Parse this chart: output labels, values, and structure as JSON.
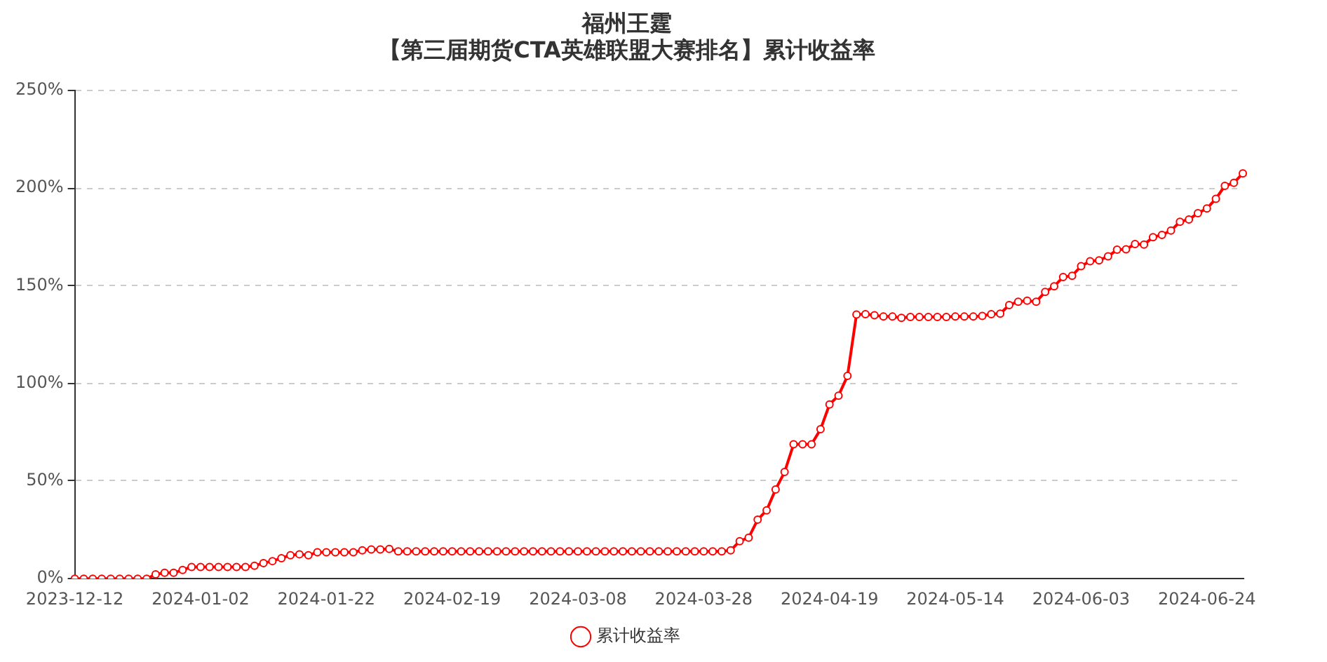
{
  "chart_data": {
    "type": "line",
    "title": "福州王霆",
    "subtitle": "【第三届期货CTA英雄联盟大赛排名】累计收益率",
    "categories": [
      "2023-12-12",
      null,
      null,
      null,
      null,
      null,
      null,
      null,
      null,
      null,
      null,
      null,
      null,
      null,
      "2024-01-02",
      null,
      null,
      null,
      null,
      null,
      null,
      null,
      null,
      null,
      null,
      null,
      null,
      null,
      "2024-01-22",
      null,
      null,
      null,
      null,
      null,
      null,
      null,
      null,
      null,
      null,
      null,
      null,
      null,
      "2024-02-19",
      null,
      null,
      null,
      null,
      null,
      null,
      null,
      null,
      null,
      null,
      null,
      null,
      null,
      "2024-03-08",
      null,
      null,
      null,
      null,
      null,
      null,
      null,
      null,
      null,
      null,
      null,
      null,
      null,
      "2024-03-28",
      null,
      null,
      null,
      null,
      null,
      null,
      null,
      null,
      null,
      null,
      null,
      null,
      null,
      "2024-04-19",
      null,
      null,
      null,
      null,
      null,
      null,
      null,
      null,
      null,
      null,
      null,
      null,
      null,
      "2024-05-14",
      null,
      null,
      null,
      null,
      null,
      null,
      null,
      null,
      null,
      null,
      null,
      null,
      null,
      "2024-06-03",
      null,
      null,
      null,
      null,
      null,
      null,
      null,
      null,
      null,
      null,
      null,
      null,
      null,
      "2024-06-24",
      null,
      null,
      null,
      null
    ],
    "series": [
      {
        "name": "累计收益率",
        "color": "#ff0000",
        "values": [
          0,
          0,
          0,
          0,
          0,
          0,
          0,
          0,
          0,
          2.2,
          3,
          3,
          4.5,
          6,
          6,
          6,
          6,
          6,
          6,
          6,
          6.6,
          8,
          9,
          10.5,
          12,
          12.5,
          12,
          13.5,
          13.5,
          13.5,
          13.5,
          13.5,
          14.5,
          15,
          15,
          15.2,
          14,
          14,
          14,
          14,
          14,
          14,
          14,
          14,
          14,
          14,
          14,
          14,
          14,
          14,
          14,
          14,
          14,
          14,
          14,
          14,
          14,
          14,
          14,
          14,
          14,
          14,
          14,
          14,
          14,
          14,
          14,
          14,
          14,
          14,
          14,
          14,
          14,
          14.5,
          19.2,
          21,
          30.2,
          35,
          45.7,
          54.6,
          68.8,
          68.8,
          68.8,
          76.5,
          89.2,
          93.7,
          103.8,
          135.2,
          135.4,
          134.9,
          134.2,
          134.2,
          133.5,
          134,
          134,
          134,
          134,
          134,
          134.2,
          134.2,
          134.2,
          134.5,
          135.4,
          135.7,
          140.1,
          141.8,
          142.3,
          141.8,
          146.8,
          149.7,
          154.4,
          155.1,
          160,
          162.5,
          163,
          165,
          168.4,
          168.6,
          171.3,
          171,
          174.8,
          176,
          178.2,
          182.7,
          183.9,
          187.1,
          189.5,
          194.5,
          201.1,
          202.6,
          207.5
        ]
      }
    ],
    "ylim": [
      0,
      250
    ],
    "yticks": [
      {
        "value": 0,
        "label": "0%"
      },
      {
        "value": 50,
        "label": "50%"
      },
      {
        "value": 100,
        "label": "100%"
      },
      {
        "value": 150,
        "label": "150%"
      },
      {
        "value": 200,
        "label": "200%"
      },
      {
        "value": 250,
        "label": "250%"
      }
    ],
    "grid": "y",
    "legend": "bottom",
    "marker": "circle",
    "line_style": "solid"
  }
}
